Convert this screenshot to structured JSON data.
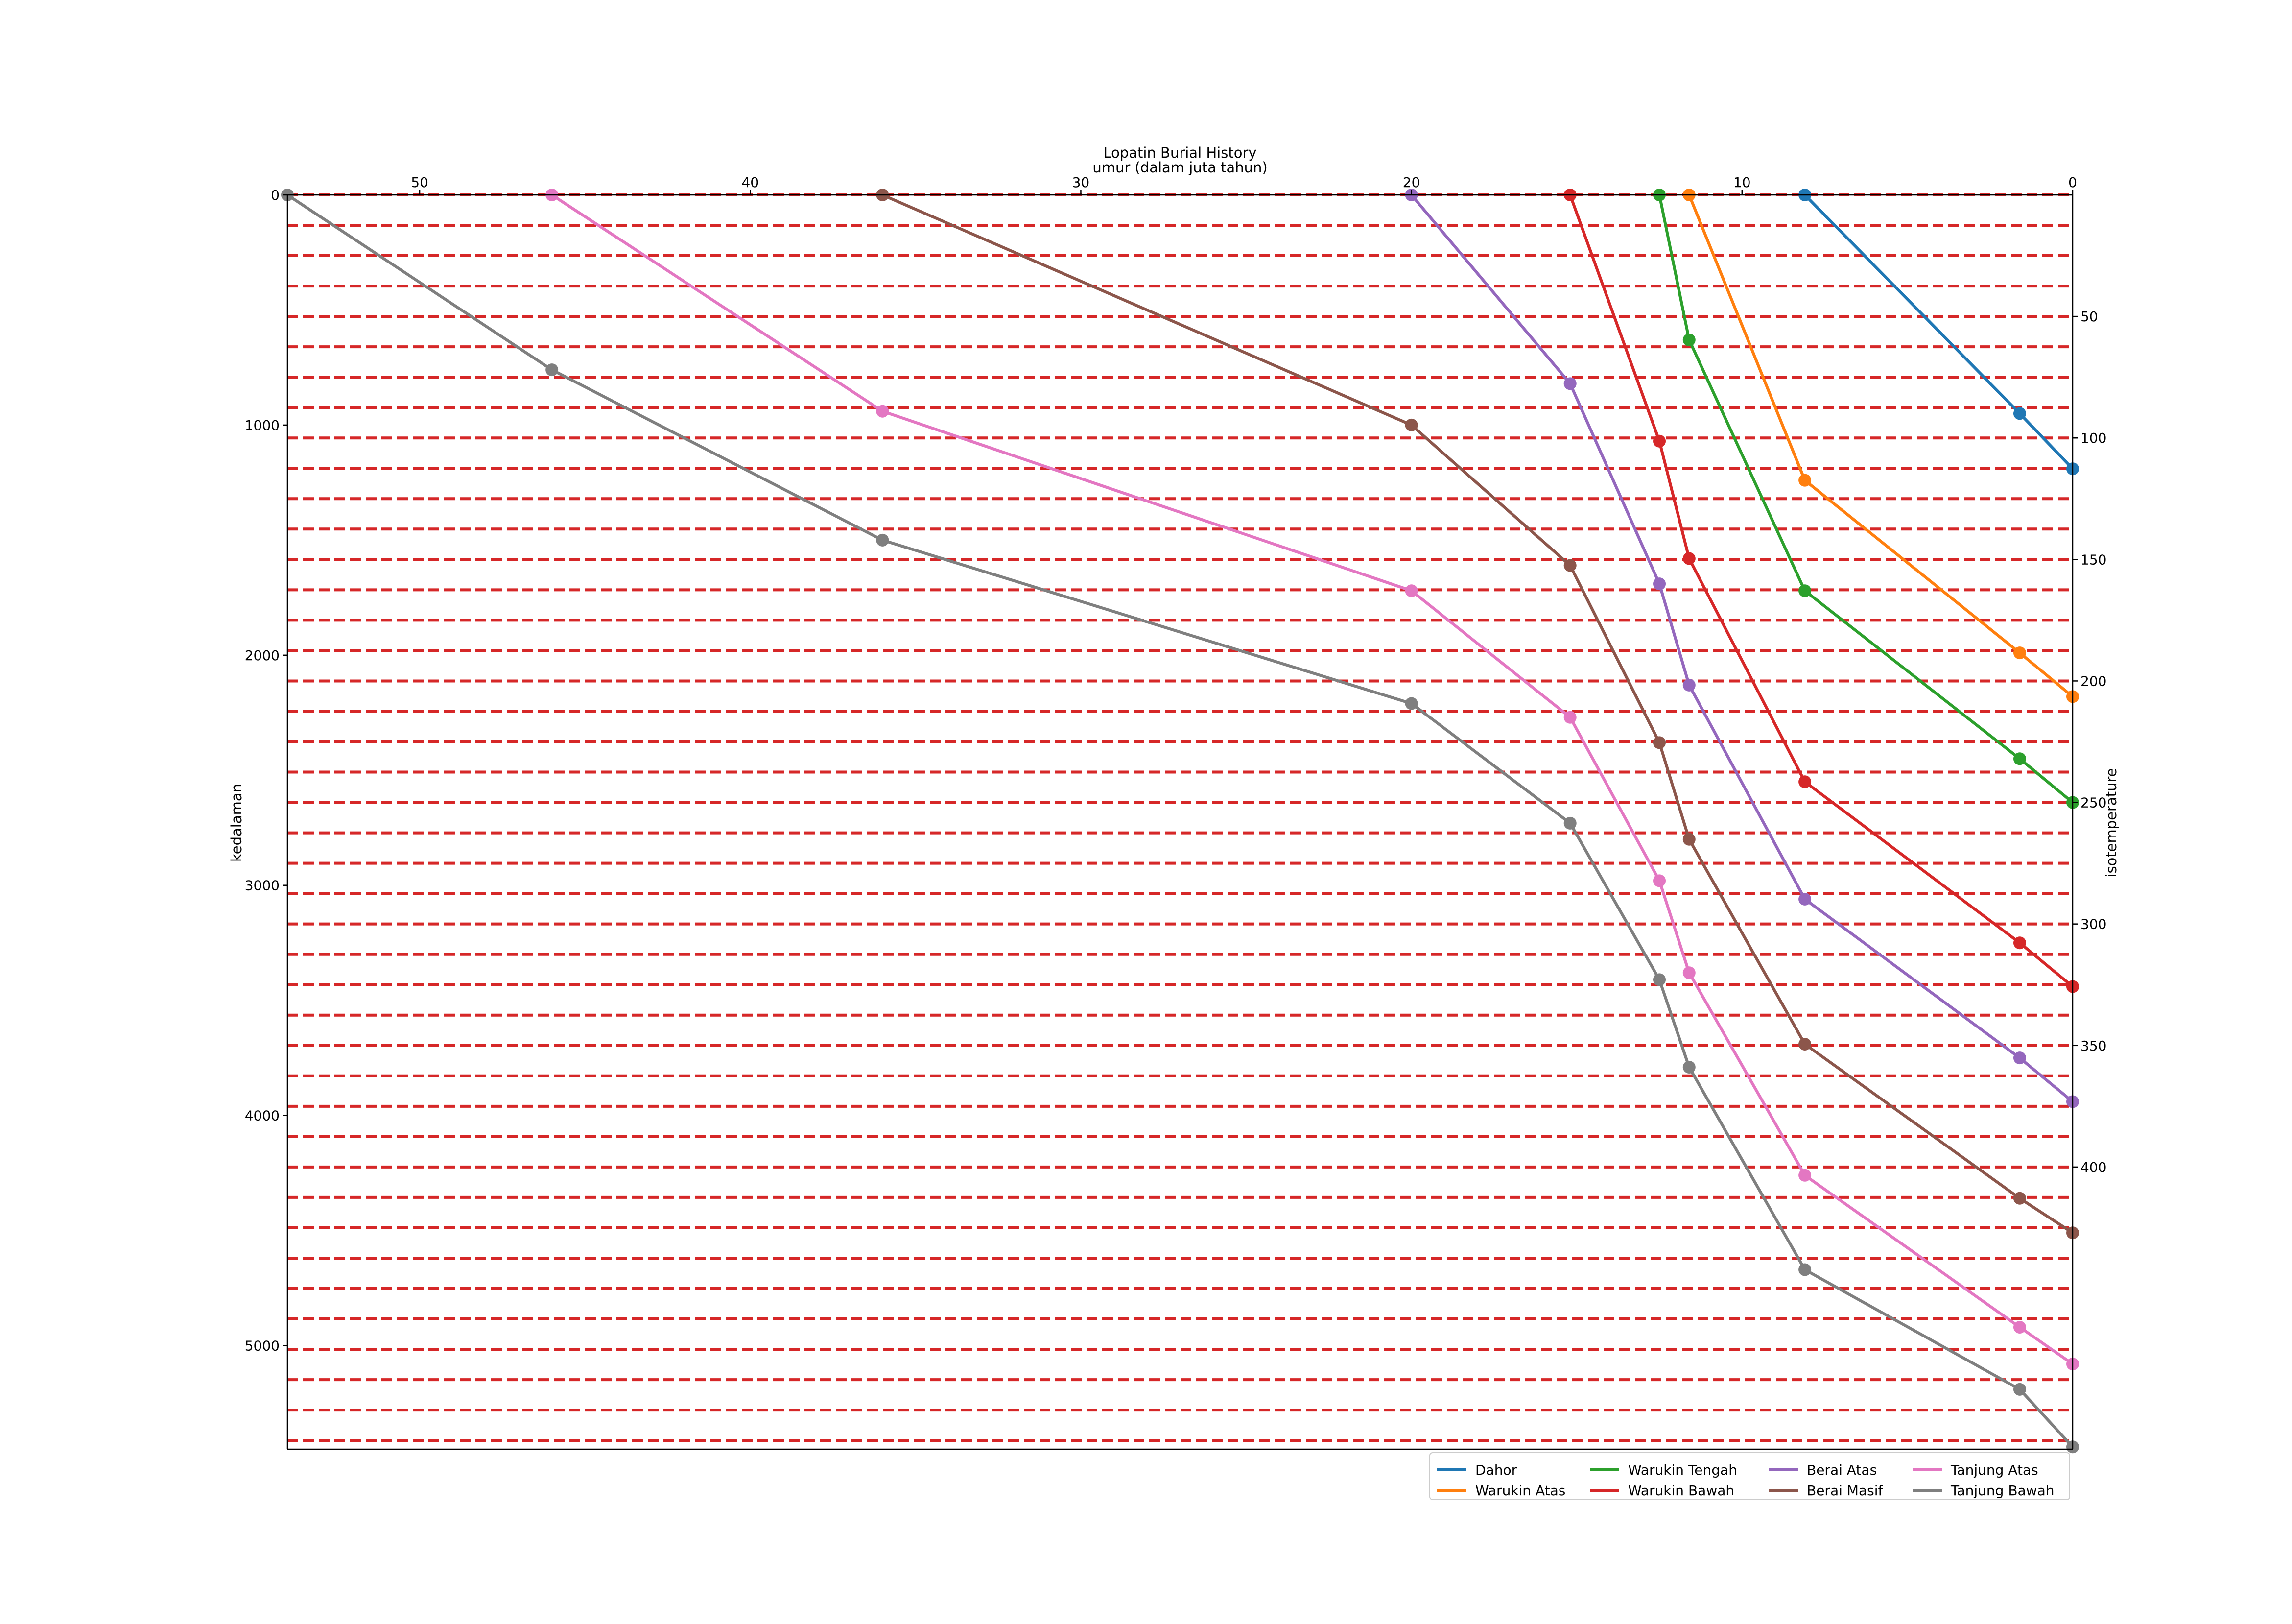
{
  "chart_data": {
    "type": "line",
    "title": "Lopatin Burial History",
    "xlabel": "umur (dalam juta tahun)",
    "ylabel": "kedalaman",
    "y2label": "isotemperature",
    "xlim": [
      54,
      0
    ],
    "ylim": [
      5450,
      0
    ],
    "x_ticks": [
      50,
      40,
      30,
      20,
      10,
      0
    ],
    "y_ticks": [
      0,
      1000,
      2000,
      3000,
      4000,
      5000
    ],
    "y2_ticks": [
      50,
      100,
      150,
      200,
      250,
      300,
      350,
      400
    ],
    "isotherm_depths": [
      0,
      132,
      264,
      396,
      528,
      660,
      792,
      924,
      1056,
      1188,
      1320,
      1452,
      1584,
      1716,
      1848,
      1980,
      2112,
      2244,
      2376,
      2508,
      2640,
      2772,
      2904,
      3036,
      3168,
      3300,
      3432,
      3564,
      3696,
      3828,
      3960,
      4092,
      4224,
      4356,
      4488,
      4620,
      4752,
      4884,
      5016,
      5148,
      5280,
      5412
    ],
    "isotherm_color": "#d62728",
    "legend_location": "lower right",
    "series": [
      {
        "name": "Dahor",
        "color": "#1f77b4",
        "points": [
          [
            8.1,
            0
          ],
          [
            1.6,
            950
          ],
          [
            0,
            1190
          ]
        ]
      },
      {
        "name": "Warukin Atas",
        "color": "#ff7f0e",
        "points": [
          [
            11.6,
            0
          ],
          [
            8.1,
            1240
          ],
          [
            1.6,
            1990
          ],
          [
            0,
            2180
          ]
        ]
      },
      {
        "name": "Warukin Tengah",
        "color": "#2ca02c",
        "points": [
          [
            12.5,
            0
          ],
          [
            11.6,
            630
          ],
          [
            8.1,
            1720
          ],
          [
            1.6,
            2450
          ],
          [
            0,
            2640
          ]
        ]
      },
      {
        "name": "Warukin Bawah",
        "color": "#d62728",
        "points": [
          [
            15.2,
            0
          ],
          [
            12.5,
            1070
          ],
          [
            11.6,
            1580
          ],
          [
            8.1,
            2550
          ],
          [
            1.6,
            3250
          ],
          [
            0,
            3440
          ]
        ]
      },
      {
        "name": "Berai Atas",
        "color": "#9467bd",
        "points": [
          [
            20,
            0
          ],
          [
            15.2,
            820
          ],
          [
            12.5,
            1690
          ],
          [
            11.6,
            2130
          ],
          [
            8.1,
            3060
          ],
          [
            1.6,
            3750
          ],
          [
            0,
            3940
          ]
        ]
      },
      {
        "name": "Berai Masif",
        "color": "#8c564b",
        "points": [
          [
            36,
            0
          ],
          [
            20,
            1000
          ],
          [
            15.2,
            1610
          ],
          [
            12.5,
            2380
          ],
          [
            11.6,
            2800
          ],
          [
            8.1,
            3690
          ],
          [
            1.6,
            4360
          ],
          [
            0,
            4510
          ]
        ]
      },
      {
        "name": "Tanjung Atas",
        "color": "#e377c2",
        "points": [
          [
            46,
            0
          ],
          [
            36,
            940
          ],
          [
            20,
            1720
          ],
          [
            15.2,
            2270
          ],
          [
            12.5,
            2980
          ],
          [
            11.6,
            3380
          ],
          [
            8.1,
            4260
          ],
          [
            1.6,
            4920
          ],
          [
            0,
            5080
          ]
        ]
      },
      {
        "name": "Tanjung Bawah",
        "color": "#7f7f7f",
        "points": [
          [
            54,
            0
          ],
          [
            46,
            760
          ],
          [
            36,
            1500
          ],
          [
            20,
            2210
          ],
          [
            15.2,
            2730
          ],
          [
            12.5,
            3410
          ],
          [
            11.6,
            3790
          ],
          [
            8.1,
            4670
          ],
          [
            1.6,
            5190
          ],
          [
            0,
            5440
          ]
        ]
      }
    ]
  }
}
